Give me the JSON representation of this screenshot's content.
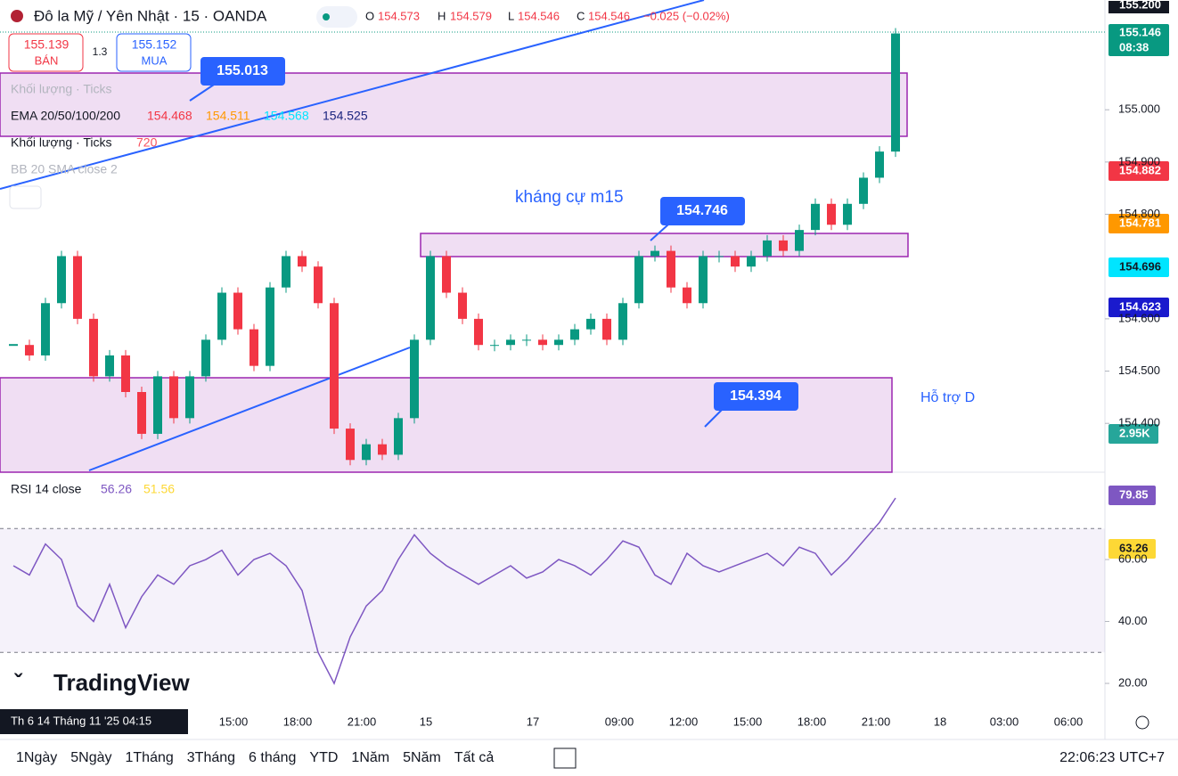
{
  "header": {
    "symbol": "Đô la Mỹ / Yên Nhật · 15 · OANDA",
    "ohlc": [
      {
        "label": "O",
        "value": "154.573"
      },
      {
        "label": "H",
        "value": "154.579"
      },
      {
        "label": "L",
        "value": "154.546"
      },
      {
        "label": "C",
        "value": "154.546"
      }
    ],
    "change": "−0.025 (−0.02%)"
  },
  "trade": {
    "sell_price": "155.139",
    "sell_label": "BÁN",
    "spread": "1.3",
    "buy_price": "155.152",
    "buy_label": "MUA"
  },
  "legend": {
    "volume_hidden": "Khối lượng · Ticks",
    "ema_name": "EMA 20/50/100/200",
    "ema_values": [
      "154.468",
      "154.511",
      "154.568",
      "154.525"
    ],
    "volume": "Khối lượng · Ticks",
    "volume_value": "720",
    "bb": "BB 20 SMA close 2",
    "rsi_name": "RSI 14 close",
    "rsi_values": [
      "56.26",
      "51.56"
    ]
  },
  "annotations": {
    "callout_top": "155.013",
    "callout_mid": "154.746",
    "callout_low": "154.394",
    "resistance": "kháng cự m15",
    "support": "Hỗ trợ D"
  },
  "badges": {
    "last": "155.146",
    "countdown": "08:38",
    "ema20": "154.882",
    "ema50": "154.781",
    "ema100": "154.696",
    "ema200": "154.623",
    "volume": "2.95K",
    "rsi": "79.85",
    "rsi_ma": "63.26",
    "top_partial": "155.200"
  },
  "time_axis": [
    "15:00",
    "18:00",
    "21:00",
    "15",
    "17",
    "09:00",
    "12:00",
    "15:00",
    "18:00",
    "21:00",
    "18",
    "03:00",
    "06:00"
  ],
  "cursor_date": "Th 6 14 Tháng 11 '25   04:15",
  "brand": "TradingView",
  "periods": [
    "1Ngày",
    "5Ngày",
    "1Tháng",
    "3Tháng",
    "6 tháng",
    "YTD",
    "1Năm",
    "5Năm",
    "Tất cả"
  ],
  "clock": "22:06:23 UTC+7",
  "chart_data": [
    {
      "type": "candlestick",
      "ylim": [
        154.31,
        155.21
      ],
      "yticks": [
        {
          "value": 155,
          "label": "155.000"
        },
        {
          "value": 154.9,
          "label": "154.900"
        },
        {
          "value": 154.8,
          "label": "154.800"
        },
        {
          "value": 154.6,
          "label": "154.600"
        },
        {
          "value": 154.5,
          "label": "154.500"
        },
        {
          "value": 154.4,
          "label": "154.400"
        }
      ],
      "values": [
        154.55,
        154.53,
        154.63,
        154.72,
        154.6,
        154.49,
        154.53,
        154.46,
        154.38,
        154.49,
        154.41,
        154.49,
        154.56,
        154.65,
        154.58,
        154.51,
        154.66,
        154.72,
        154.7,
        154.63,
        154.39,
        154.33,
        154.36,
        154.34,
        154.41,
        154.56,
        154.72,
        154.65,
        154.6,
        154.55,
        154.55,
        154.56,
        154.56,
        154.55,
        154.56,
        154.58,
        154.6,
        154.56,
        154.63,
        154.72,
        154.73,
        154.66,
        154.63,
        154.72,
        154.72,
        154.7,
        154.72,
        154.75,
        154.73,
        154.77,
        154.82,
        154.78,
        154.82,
        154.87,
        154.92,
        155.146
      ],
      "up_color": "#089981",
      "down_color": "#f23645"
    },
    {
      "type": "line",
      "ylim": [
        13.4,
        88.2
      ],
      "yticks": [
        {
          "value": 60,
          "label": "60.00"
        },
        {
          "value": 40,
          "label": "40.00"
        },
        {
          "value": 20,
          "label": "20.00"
        }
      ],
      "band": [
        30,
        70
      ],
      "color": "#7e57c2",
      "values": [
        58,
        55,
        65,
        60,
        45,
        40,
        52,
        38,
        48,
        55,
        52,
        58,
        60,
        63,
        55,
        60,
        62,
        58,
        50,
        30,
        20,
        35,
        45,
        50,
        60,
        68,
        62,
        58,
        55,
        52,
        55,
        58,
        54,
        56,
        60,
        58,
        55,
        60,
        66,
        64,
        55,
        52,
        62,
        58,
        56,
        58,
        60,
        62,
        58,
        64,
        62,
        55,
        60,
        66,
        72,
        79.85
      ]
    }
  ]
}
